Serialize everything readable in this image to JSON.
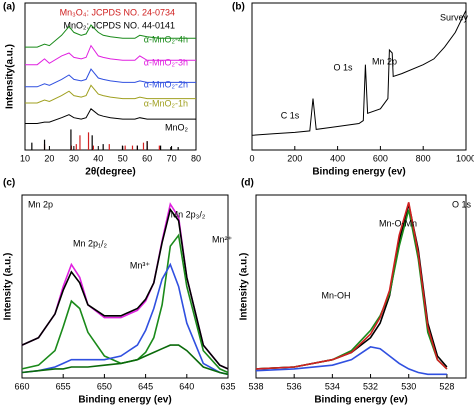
{
  "chart_data": [
    {
      "type": "line",
      "label": "(a)",
      "xlabel": "2θ(degree)",
      "ylabel": "Intensity(a.u.)",
      "x": [
        10,
        15,
        18,
        20,
        25,
        28,
        30,
        33,
        35,
        37,
        40,
        42,
        45,
        50,
        55,
        57,
        60,
        65,
        70,
        75,
        80
      ],
      "xlim": [
        10,
        80
      ],
      "xticks": [
        10,
        20,
        30,
        40,
        50,
        60,
        70,
        80
      ],
      "ylim": [
        0,
        100
      ],
      "series": [
        {
          "name": "α-MnO₂-4h",
          "color": "#1a8a1a",
          "values": [
            70,
            70,
            72,
            71,
            78,
            84,
            80,
            78,
            79,
            85,
            80,
            78,
            77,
            76,
            76,
            78,
            77,
            76,
            76,
            76,
            76
          ]
        },
        {
          "name": "α-MnO₂-3h",
          "color": "#e020e0",
          "values": [
            58,
            58,
            62,
            59,
            64,
            66,
            63,
            62,
            63,
            71,
            64,
            63,
            62,
            61,
            61,
            64,
            61,
            61,
            61,
            61,
            61
          ]
        },
        {
          "name": "α-MnO₂-2h",
          "color": "#3050e0",
          "values": [
            43,
            43,
            45,
            44,
            48,
            51,
            48,
            47,
            48,
            55,
            49,
            48,
            47,
            46,
            46,
            47,
            46,
            46,
            46,
            46,
            46
          ]
        },
        {
          "name": "α-MnO₂-1h",
          "color": "#a0a020",
          "values": [
            32,
            32,
            34,
            33,
            37,
            40,
            37,
            36,
            37,
            44,
            38,
            37,
            36,
            35,
            35,
            36,
            35,
            35,
            35,
            35,
            35
          ]
        },
        {
          "name": "MnO₂",
          "color": "#000000",
          "values": [
            18,
            18,
            19,
            19,
            22,
            24,
            22,
            21,
            22,
            28,
            24,
            23,
            22,
            21,
            21,
            22,
            21,
            21,
            21,
            21,
            21
          ]
        }
      ],
      "references": [
        {
          "name": "Mn₃O₄: JCPDS NO. 24-0734",
          "color": "#d02020",
          "positions": [
            18,
            29,
            31,
            32.5,
            36,
            38,
            44.5,
            51,
            54,
            56,
            58.5,
            60,
            65
          ],
          "heights": [
            4,
            3,
            4,
            10,
            12,
            3,
            4,
            3,
            3,
            3,
            5,
            6,
            3
          ]
        },
        {
          "name": "MnO₂: JCPDS NO. 44-0141",
          "color": "#000000",
          "positions": [
            12.8,
            18,
            28.8,
            37.5,
            42,
            49.9,
            56,
            60,
            65.5,
            69.7,
            72.7
          ],
          "heights": [
            5,
            7,
            14,
            10,
            4,
            3,
            3,
            6,
            3,
            2,
            2
          ]
        }
      ]
    },
    {
      "type": "line",
      "label": "(b)",
      "xlabel": "Binding energy (ev)",
      "x": [
        0,
        100,
        200,
        270,
        285,
        300,
        400,
        500,
        520,
        530,
        540,
        600,
        635,
        642,
        655,
        660,
        700,
        800,
        850,
        900,
        950,
        1000
      ],
      "xlim": [
        0,
        1000
      ],
      "xticks": [
        0,
        200,
        400,
        600,
        800,
        1000
      ],
      "ylim": [
        0,
        100
      ],
      "series": [
        {
          "color": "#000000",
          "values": [
            10,
            11,
            12,
            13,
            35,
            14,
            16,
            18,
            20,
            58,
            25,
            28,
            35,
            68,
            66,
            50,
            52,
            58,
            62,
            70,
            80,
            95
          ]
        }
      ],
      "annotations": [
        "Survey",
        "Mn 2p",
        "O 1s",
        "C 1s"
      ]
    },
    {
      "type": "line",
      "label": "(c)",
      "xlabel": "Binding energy (ev)",
      "ylabel": "Intensity (a.u.)",
      "x": [
        660,
        658,
        656,
        655,
        654,
        653,
        652,
        650,
        648,
        646,
        645,
        644,
        643,
        642,
        641,
        640,
        638,
        636,
        635
      ],
      "xlim": [
        660,
        635
      ],
      "xticks": [
        660,
        655,
        650,
        645,
        640,
        635
      ],
      "ylim": [
        0,
        100
      ],
      "series": [
        {
          "color": "#e020e0",
          "values": [
            18,
            22,
            35,
            50,
            62,
            55,
            40,
            33,
            33,
            37,
            42,
            52,
            75,
            95,
            88,
            55,
            18,
            7,
            5
          ]
        },
        {
          "color": "#000000",
          "values": [
            18,
            22,
            35,
            48,
            58,
            52,
            40,
            34,
            34,
            38,
            43,
            52,
            74,
            92,
            86,
            55,
            18,
            7,
            5
          ]
        },
        {
          "color": "#1a8a1a",
          "values": [
            5,
            7,
            15,
            28,
            42,
            38,
            25,
            12,
            8,
            10,
            14,
            22,
            40,
            72,
            78,
            50,
            15,
            5,
            3
          ]
        },
        {
          "color": "#3050e0",
          "values": [
            3,
            4,
            6,
            8,
            10,
            10,
            10,
            10,
            12,
            18,
            26,
            38,
            54,
            62,
            50,
            30,
            8,
            3,
            2
          ]
        },
        {
          "color": "#0a6a0a",
          "values": [
            3,
            4,
            5,
            5,
            6,
            6,
            6,
            7,
            8,
            10,
            12,
            14,
            16,
            18,
            18,
            15,
            6,
            3,
            2
          ]
        }
      ],
      "annotations": [
        "Mn 2p",
        "Mn 2p₁/₂",
        "Mn 2p₃/₂",
        "Mn³⁺",
        "Mn²⁺"
      ]
    },
    {
      "type": "line",
      "label": "(d)",
      "xlabel": "Binding energy (ev)",
      "ylabel": "Intensity (a.u.)",
      "x": [
        538,
        536,
        534,
        533,
        532,
        531.5,
        531,
        530.5,
        530,
        529.5,
        529,
        528.5,
        528
      ],
      "xlim": [
        538,
        527
      ],
      "xticks": [
        538,
        536,
        534,
        532,
        530,
        528
      ],
      "ylim": [
        0,
        100
      ],
      "series": [
        {
          "color": "#000000",
          "values": [
            5,
            6,
            10,
            14,
            22,
            30,
            45,
            75,
            95,
            70,
            30,
            12,
            6
          ]
        },
        {
          "color": "#1a8a1a",
          "values": [
            5,
            6,
            10,
            15,
            26,
            34,
            46,
            72,
            92,
            65,
            25,
            10,
            5
          ]
        },
        {
          "color": "#d02020",
          "values": [
            5,
            6,
            10,
            14,
            24,
            33,
            48,
            78,
            96,
            68,
            28,
            10,
            5
          ]
        },
        {
          "color": "#3050e0",
          "values": [
            4,
            5,
            7,
            10,
            17,
            16,
            12,
            8,
            5,
            3,
            2,
            2,
            2
          ]
        }
      ],
      "annotations": [
        "O 1s",
        "Mn-O-Mn",
        "Mn-OH"
      ]
    }
  ]
}
